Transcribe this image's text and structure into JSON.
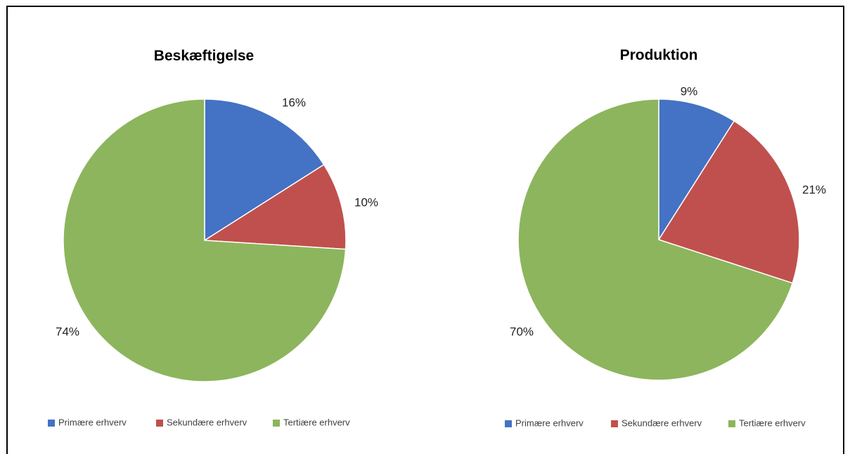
{
  "chart_data": [
    {
      "type": "pie",
      "title": "Beskæftigelse",
      "categories": [
        "Primære erhverv",
        "Sekundære erhverv",
        "Tertiære erhverv"
      ],
      "values": [
        16,
        10,
        74
      ],
      "data_labels": [
        "16%",
        "10%",
        "74%"
      ],
      "colors": [
        "#4472C4",
        "#C0504D",
        "#8DB55D"
      ],
      "legend": "bottom"
    },
    {
      "type": "pie",
      "title": "Produktion",
      "categories": [
        "Primære erhverv",
        "Sekundære erhverv",
        "Tertiære erhverv"
      ],
      "values": [
        9,
        21,
        70
      ],
      "data_labels": [
        "9%",
        "21%",
        "70%"
      ],
      "colors": [
        "#4472C4",
        "#C0504D",
        "#8DB55D"
      ],
      "legend": "bottom"
    }
  ]
}
